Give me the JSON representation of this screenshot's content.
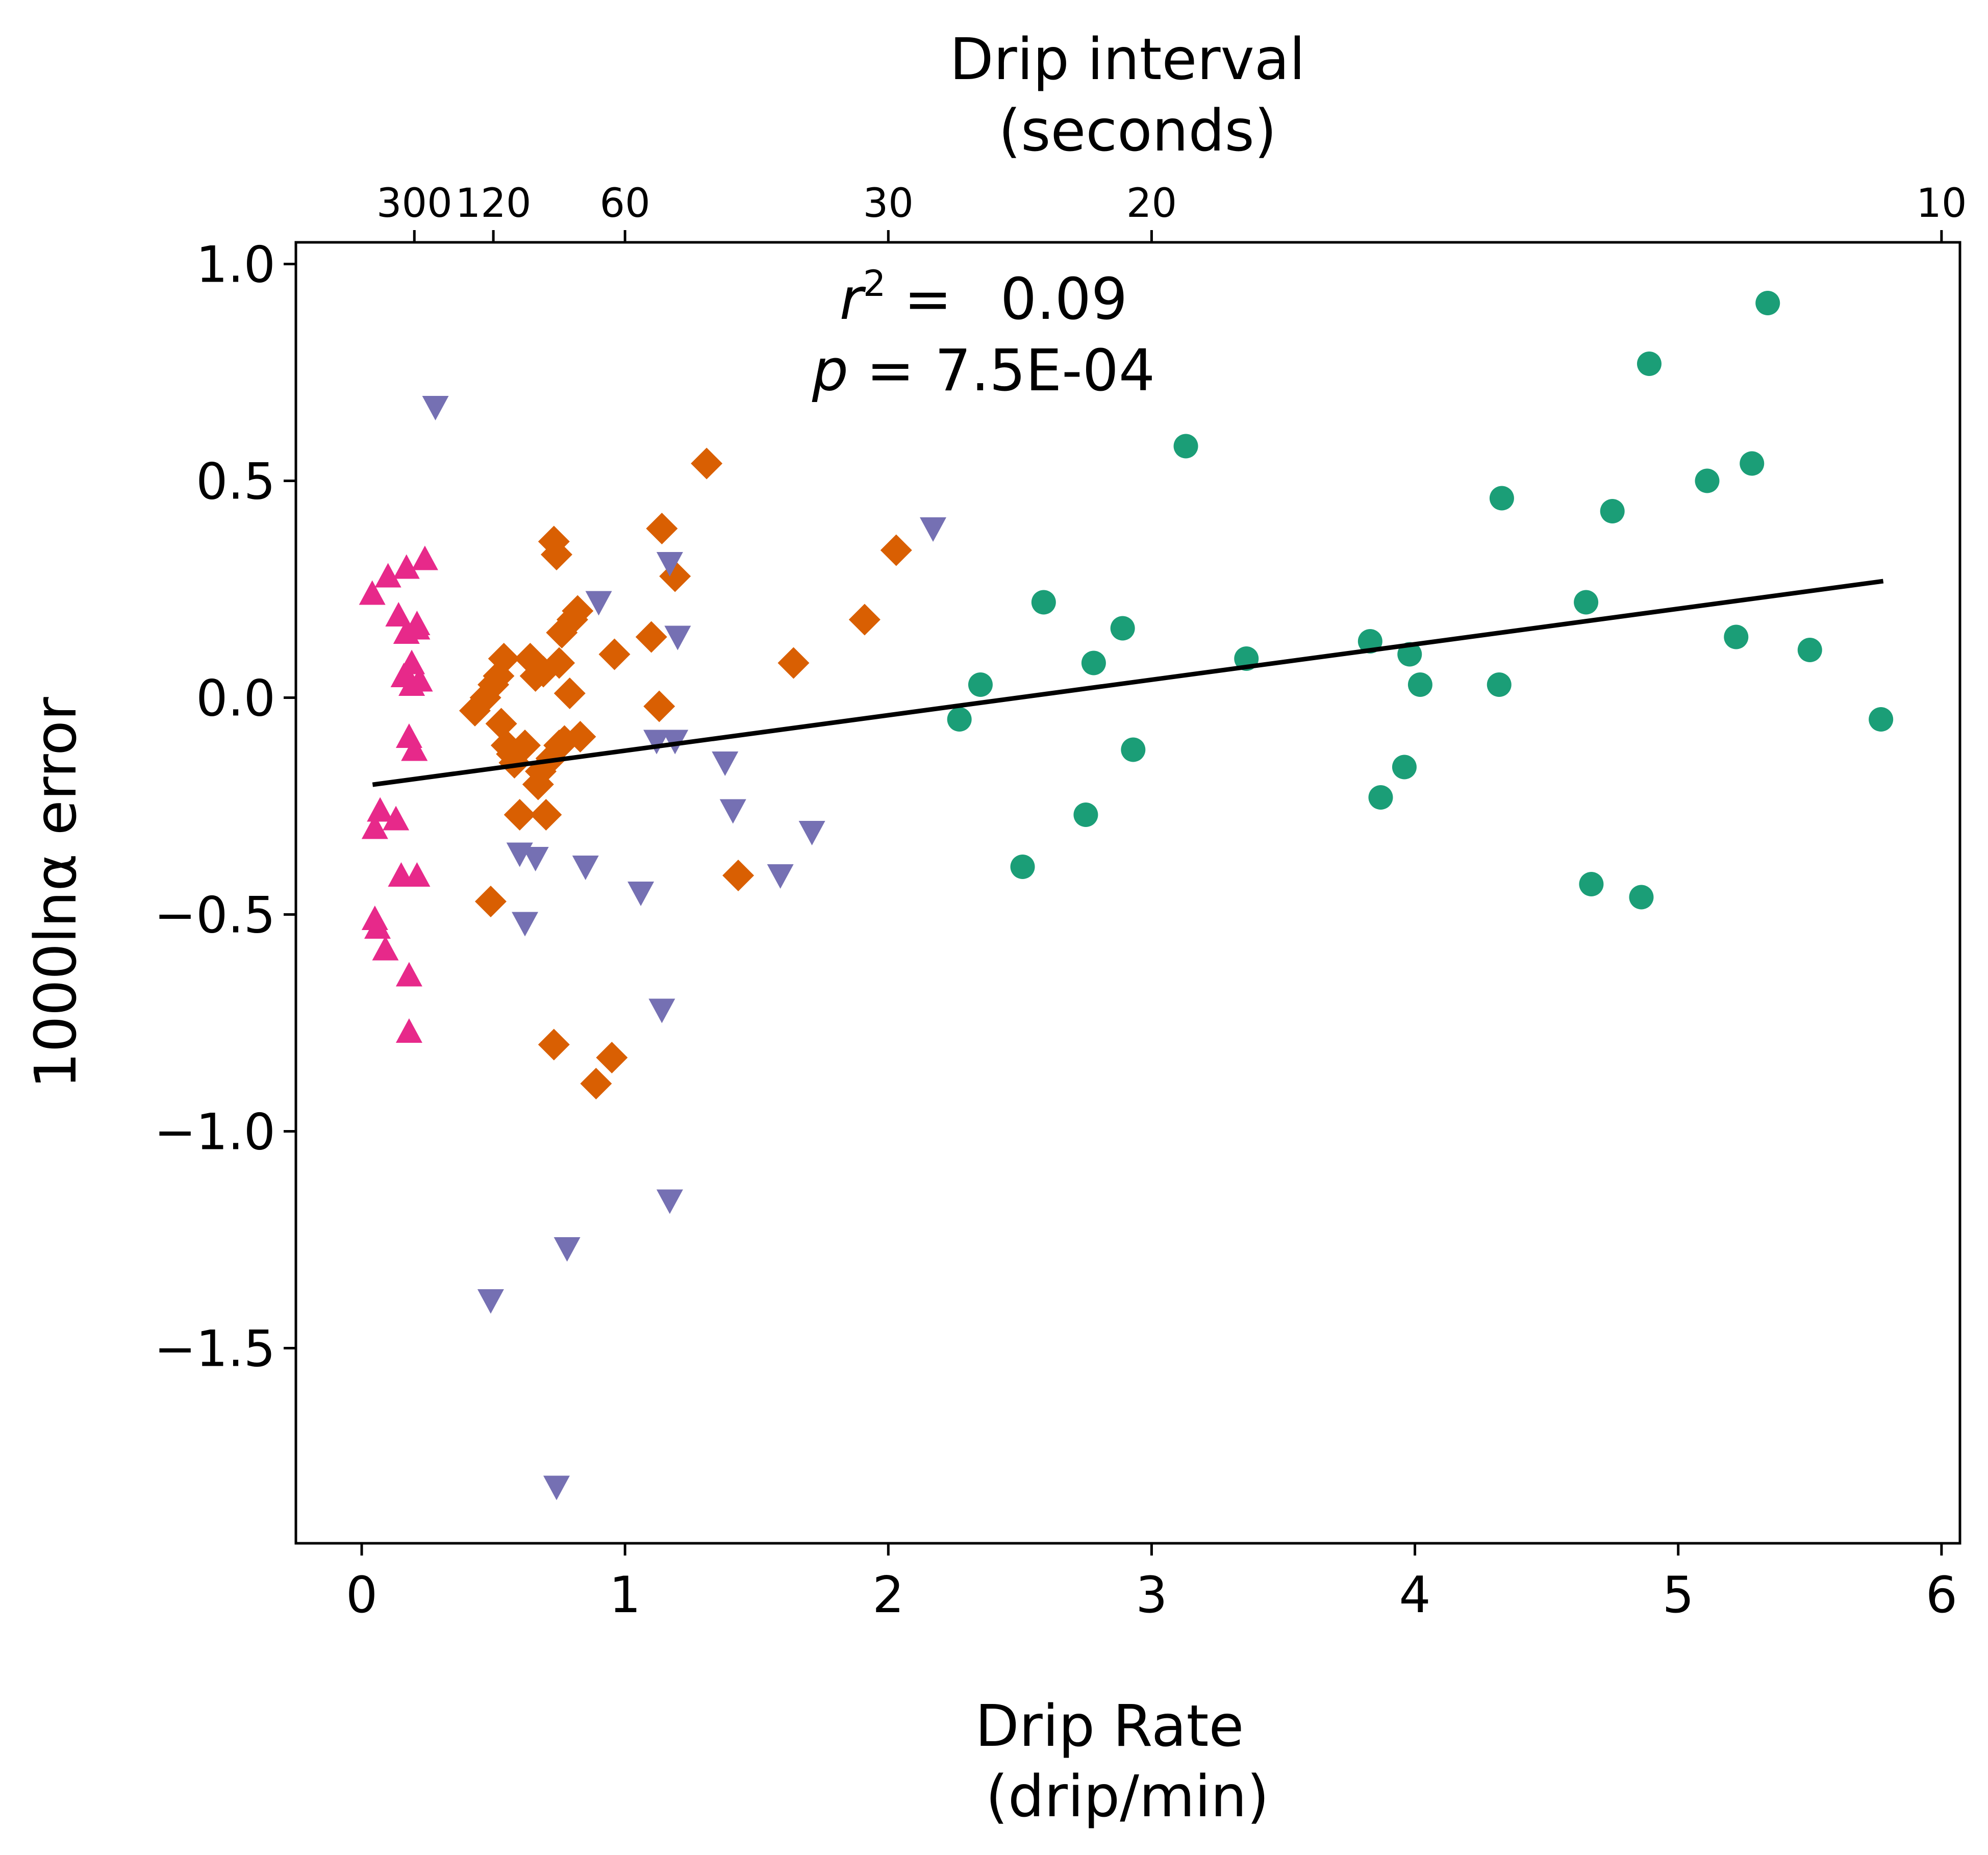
{
  "chart_data": {
    "type": "scatter",
    "title": "",
    "xlabel": [
      "Drip Rate",
      "(drip/min)"
    ],
    "ylabel": "1000lnα error",
    "top_axis_label": [
      "Drip interval",
      "(seconds)"
    ],
    "xlim": [
      -0.25,
      6.07
    ],
    "ylim": [
      -1.95,
      1.05
    ],
    "x_ticks": [
      0,
      1,
      2,
      3,
      4,
      5,
      6
    ],
    "y_ticks": [
      1.0,
      0.5,
      0.0,
      -0.5,
      -1.0,
      -1.5
    ],
    "x_tick_labels": [
      "0",
      "1",
      "2",
      "3",
      "4",
      "5",
      "6"
    ],
    "y_tick_labels": [
      "1.0",
      "0.5",
      "0.0",
      "−0.5",
      "−1.0",
      "−1.5"
    ],
    "top_ticks": [
      {
        "label": "300",
        "rate": 0.2
      },
      {
        "label": "120",
        "rate": 0.5
      },
      {
        "label": "60",
        "rate": 1.0
      },
      {
        "label": "30",
        "rate": 2.0
      },
      {
        "label": "20",
        "rate": 3.0
      },
      {
        "label": "10",
        "rate": 6.0
      }
    ],
    "annotation": {
      "r2_symbol": "r",
      "r2_exp": "2",
      "r2_eq": " =",
      "r2_value": "0.09",
      "p_symbol": "p",
      "p_eq": " =",
      "p_value": "7.5E-04"
    },
    "fit_line": {
      "x": [
        0.05,
        5.77
      ],
      "y": [
        -0.2,
        0.268
      ],
      "color": "#000000"
    },
    "grid": false,
    "series": [
      {
        "marker": "circle",
        "color": "#1b9e77",
        "points": [
          [
            2.27,
            -0.05
          ],
          [
            2.35,
            0.03
          ],
          [
            2.51,
            -0.39
          ],
          [
            2.59,
            0.22
          ],
          [
            2.75,
            -0.27
          ],
          [
            2.78,
            0.08
          ],
          [
            2.89,
            0.16
          ],
          [
            2.93,
            -0.12
          ],
          [
            3.13,
            0.58
          ],
          [
            3.36,
            0.09
          ],
          [
            3.83,
            0.13
          ],
          [
            3.87,
            -0.23
          ],
          [
            3.96,
            -0.16
          ],
          [
            3.98,
            0.1
          ],
          [
            4.02,
            0.03
          ],
          [
            4.32,
            0.03
          ],
          [
            4.33,
            0.46
          ],
          [
            4.65,
            0.22
          ],
          [
            4.67,
            -0.43
          ],
          [
            4.75,
            0.43
          ],
          [
            4.86,
            -0.46
          ],
          [
            4.89,
            0.77
          ],
          [
            5.11,
            0.5
          ],
          [
            5.22,
            0.14
          ],
          [
            5.28,
            0.54
          ],
          [
            5.34,
            0.91
          ],
          [
            5.5,
            0.11
          ],
          [
            5.77,
            -0.05
          ]
        ]
      },
      {
        "marker": "diamond",
        "color": "#d95f02",
        "points": [
          [
            0.43,
            -0.03
          ],
          [
            0.47,
            0.0
          ],
          [
            0.49,
            -0.47
          ],
          [
            0.5,
            0.03
          ],
          [
            0.52,
            0.05
          ],
          [
            0.53,
            -0.06
          ],
          [
            0.54,
            0.09
          ],
          [
            0.55,
            -0.11
          ],
          [
            0.57,
            -0.13
          ],
          [
            0.58,
            -0.15
          ],
          [
            0.6,
            -0.27
          ],
          [
            0.62,
            -0.11
          ],
          [
            0.64,
            0.09
          ],
          [
            0.66,
            0.05
          ],
          [
            0.67,
            -0.2
          ],
          [
            0.68,
            -0.17
          ],
          [
            0.69,
            0.06
          ],
          [
            0.7,
            -0.27
          ],
          [
            0.72,
            -0.14
          ],
          [
            0.73,
            -0.8
          ],
          [
            0.73,
            0.36
          ],
          [
            0.74,
            0.33
          ],
          [
            0.75,
            -0.11
          ],
          [
            0.75,
            0.08
          ],
          [
            0.76,
            0.15
          ],
          [
            0.77,
            -0.1
          ],
          [
            0.79,
            0.01
          ],
          [
            0.8,
            0.18
          ],
          [
            0.82,
            0.2
          ],
          [
            0.83,
            -0.09
          ],
          [
            0.89,
            -0.89
          ],
          [
            0.95,
            -0.83
          ],
          [
            0.96,
            0.1
          ],
          [
            1.1,
            0.14
          ],
          [
            1.13,
            -0.02
          ],
          [
            1.14,
            0.39
          ],
          [
            1.19,
            0.28
          ],
          [
            1.31,
            0.54
          ],
          [
            1.43,
            -0.41
          ],
          [
            1.64,
            0.08
          ],
          [
            1.91,
            0.18
          ],
          [
            2.03,
            0.34
          ]
        ]
      },
      {
        "marker": "triangle-down",
        "color": "#7570b3",
        "points": [
          [
            0.28,
            0.67
          ],
          [
            0.49,
            -1.39
          ],
          [
            0.6,
            -0.36
          ],
          [
            0.62,
            -0.52
          ],
          [
            0.66,
            -0.37
          ],
          [
            0.74,
            -1.82
          ],
          [
            0.78,
            -1.27
          ],
          [
            0.85,
            -0.39
          ],
          [
            0.9,
            0.22
          ],
          [
            1.06,
            -0.45
          ],
          [
            1.12,
            -0.1
          ],
          [
            1.14,
            -0.72
          ],
          [
            1.17,
            -1.16
          ],
          [
            1.17,
            0.31
          ],
          [
            1.19,
            -0.1
          ],
          [
            1.2,
            0.14
          ],
          [
            1.38,
            -0.15
          ],
          [
            1.41,
            -0.26
          ],
          [
            1.59,
            -0.41
          ],
          [
            1.71,
            -0.31
          ],
          [
            2.17,
            0.39
          ]
        ]
      },
      {
        "marker": "triangle-up",
        "color": "#e7298a",
        "points": [
          [
            0.04,
            0.24
          ],
          [
            0.05,
            -0.3
          ],
          [
            0.05,
            -0.51
          ],
          [
            0.06,
            -0.53
          ],
          [
            0.07,
            -0.26
          ],
          [
            0.09,
            -0.58
          ],
          [
            0.1,
            0.28
          ],
          [
            0.13,
            -0.28
          ],
          [
            0.14,
            0.19
          ],
          [
            0.15,
            -0.41
          ],
          [
            0.16,
            0.05
          ],
          [
            0.17,
            0.15
          ],
          [
            0.17,
            0.3
          ],
          [
            0.18,
            -0.09
          ],
          [
            0.18,
            -0.64
          ],
          [
            0.18,
            -0.77
          ],
          [
            0.19,
            0.08
          ],
          [
            0.19,
            0.03
          ],
          [
            0.2,
            -0.12
          ],
          [
            0.2,
            -0.12
          ],
          [
            0.21,
            0.17
          ],
          [
            0.21,
            0.16
          ],
          [
            0.21,
            -0.41
          ],
          [
            0.22,
            0.04
          ],
          [
            0.24,
            0.32
          ]
        ]
      }
    ]
  }
}
